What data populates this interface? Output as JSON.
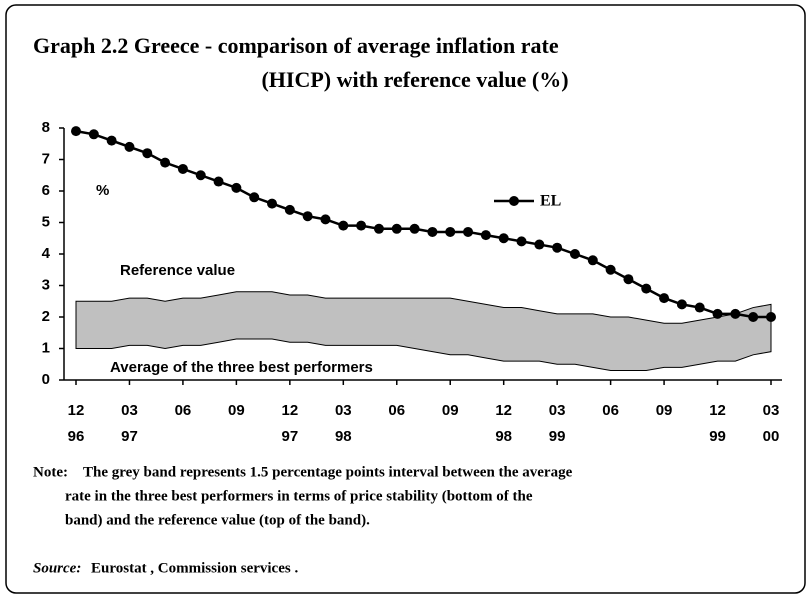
{
  "chart_data": {
    "type": "line-band",
    "title_lines": [
      "Graph 2.2 Greece - comparison of average inflation rate",
      "(HICP) with reference value (%)"
    ],
    "y_unit": "%",
    "categories": [
      "12",
      null,
      null,
      "03",
      null,
      null,
      "06",
      null,
      null,
      "09",
      null,
      null,
      "12",
      null,
      null,
      "03",
      null,
      null,
      "06",
      null,
      null,
      "09",
      null,
      null,
      "12",
      null,
      null,
      "03",
      null,
      null,
      "06",
      null,
      null,
      "09",
      null,
      null,
      "12",
      null,
      null,
      "03"
    ],
    "category_years": [
      "96",
      null,
      null,
      "97",
      null,
      null,
      null,
      null,
      null,
      null,
      null,
      null,
      "97",
      null,
      null,
      "98",
      null,
      null,
      null,
      null,
      null,
      null,
      null,
      null,
      "98",
      null,
      null,
      "99",
      null,
      null,
      null,
      null,
      null,
      null,
      null,
      null,
      "99",
      null,
      null,
      "00"
    ],
    "series": [
      {
        "name": "EL",
        "color": "#000000",
        "values": [
          7.9,
          7.8,
          7.6,
          7.4,
          7.2,
          6.9,
          6.7,
          6.5,
          6.3,
          6.1,
          5.8,
          5.6,
          5.4,
          5.2,
          5.1,
          4.9,
          4.9,
          4.8,
          4.8,
          4.8,
          4.7,
          4.7,
          4.7,
          4.6,
          4.5,
          4.4,
          4.3,
          4.2,
          4.0,
          3.8,
          3.5,
          3.2,
          2.9,
          2.6,
          2.4,
          2.3,
          2.1,
          2.1,
          2.0,
          2.0
        ]
      },
      {
        "name": "Reference value",
        "color": "#c0c0c0",
        "values": [
          2.5,
          2.5,
          2.5,
          2.6,
          2.6,
          2.5,
          2.6,
          2.6,
          2.7,
          2.8,
          2.8,
          2.8,
          2.7,
          2.7,
          2.6,
          2.6,
          2.6,
          2.6,
          2.6,
          2.6,
          2.6,
          2.6,
          2.5,
          2.4,
          2.3,
          2.3,
          2.2,
          2.1,
          2.1,
          2.1,
          2.0,
          2.0,
          1.9,
          1.8,
          1.8,
          1.9,
          2.0,
          2.1,
          2.3,
          2.4
        ]
      },
      {
        "name": "Average of the three best performers",
        "color": "#c0c0c0",
        "values": [
          1.0,
          1.0,
          1.0,
          1.1,
          1.1,
          1.0,
          1.1,
          1.1,
          1.2,
          1.3,
          1.3,
          1.3,
          1.2,
          1.2,
          1.1,
          1.1,
          1.1,
          1.1,
          1.1,
          1.0,
          0.9,
          0.8,
          0.8,
          0.7,
          0.6,
          0.6,
          0.6,
          0.5,
          0.5,
          0.4,
          0.3,
          0.3,
          0.3,
          0.4,
          0.4,
          0.5,
          0.6,
          0.6,
          0.8,
          0.9
        ]
      }
    ],
    "ylim": [
      0,
      8
    ],
    "yticks": [
      0,
      1,
      2,
      3,
      4,
      5,
      6,
      7,
      8
    ],
    "note_label": "Note:",
    "note_lines": [
      "The grey band represents 1.5 percentage points interval between the average",
      "rate in the three best performers in terms of price stability (bottom of the",
      "band) and the reference value (top of the band)."
    ],
    "source_label": "Source:",
    "source_text": "Eurostat , Commission services ."
  }
}
